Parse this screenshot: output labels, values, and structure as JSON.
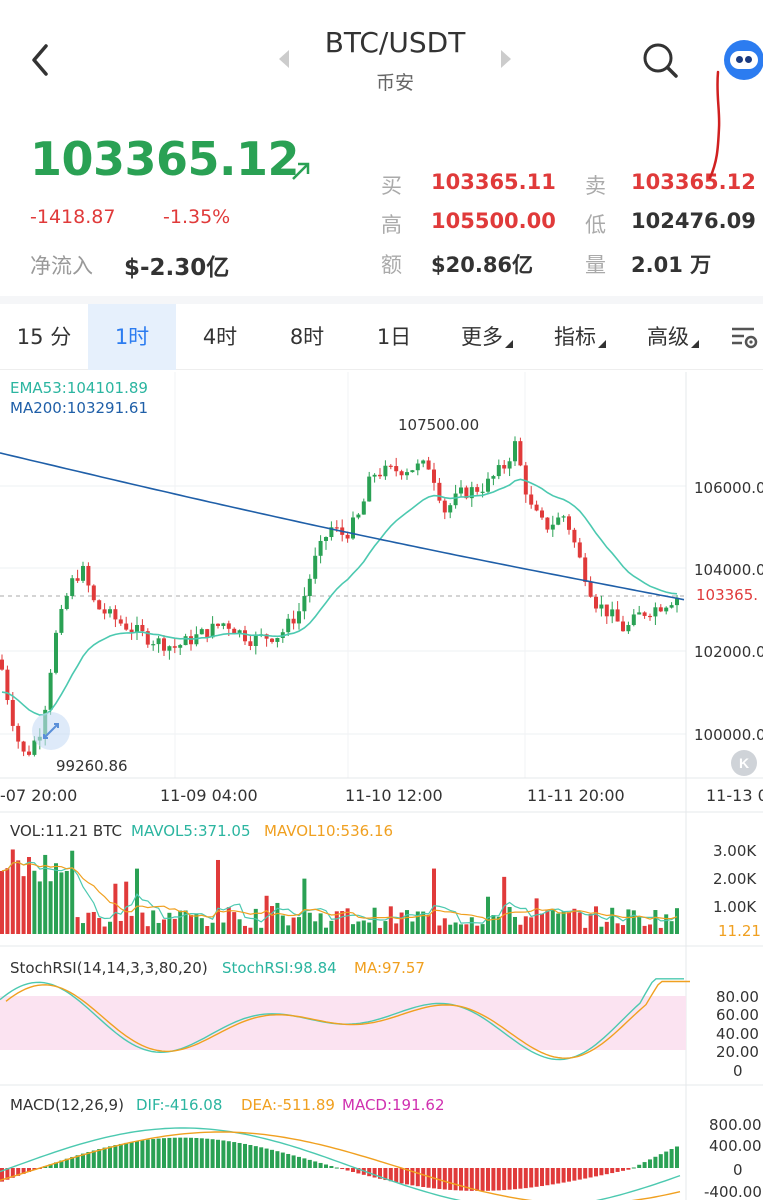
{
  "header": {
    "pair": "BTC/USDT",
    "exchange": "币安"
  },
  "price": {
    "last": "103365.12",
    "change": "-1418.87",
    "change_pct": "-1.35%",
    "netflow_label": "净流入",
    "netflow_value": "$-2.30亿"
  },
  "stats": {
    "buy_label": "买",
    "buy_value": "103365.11",
    "sell_label": "卖",
    "sell_value": "103365.12",
    "high_label": "高",
    "high_value": "105500.00",
    "low_label": "低",
    "low_value": "102476.09",
    "amount_label": "额",
    "amount_value": "$20.86亿",
    "volume_label": "量",
    "volume_value": "2.01 万"
  },
  "tabs": [
    {
      "label": "15 分"
    },
    {
      "label": "1时",
      "active": true
    },
    {
      "label": "4时"
    },
    {
      "label": "8时"
    },
    {
      "label": "1日"
    },
    {
      "label": "更多"
    },
    {
      "label": "指标"
    },
    {
      "label": "高级"
    }
  ],
  "main_chart": {
    "ema_label": "EMA53:104101.89",
    "ma_label": "MA200:103291.61",
    "high_marker": "107500.00",
    "low_marker": "99260.86",
    "current_tag": "103365.",
    "y_ticks": [
      "106000.0",
      "104000.0",
      "102000.0",
      "100000.0"
    ],
    "dates": [
      "-07 20:00",
      "11-09 04:00",
      "11-10 12:00",
      "11-11 20:00",
      "11-13 0"
    ]
  },
  "volume": {
    "vol_label": "VOL:11.21 BTC",
    "mavol5_label": "MAVOL5:371.05",
    "mavol10_label": "MAVOL10:536.16",
    "y_ticks": [
      "3.00K",
      "2.00K",
      "1.00K"
    ],
    "current": "11.21"
  },
  "stochrsi": {
    "params_label": "StochRSI(14,14,3,3,80,20)",
    "value_label": "StochRSI:98.84",
    "ma_label": "MA:97.57",
    "y_ticks": [
      "80.00",
      "60.00",
      "40.00",
      "20.00",
      "0"
    ]
  },
  "macd": {
    "params_label": "MACD(12,26,9)",
    "dif_label": "DIF:-416.08",
    "dea_label": "DEA:-511.89",
    "macd_label": "MACD:191.62",
    "y_ticks": [
      "800.00",
      "400.00",
      "0",
      "-400.00"
    ]
  },
  "colors": {
    "up": "#2aa154",
    "down": "#e03a3a",
    "ema": "#4cc9b0",
    "ma200": "#1f5fa8",
    "mavol10": "#f0a020",
    "accent": "#2c7cf0"
  },
  "icons": [
    "back-icon",
    "prev-pair-icon",
    "next-pair-icon",
    "search-icon",
    "assistant-bot-icon",
    "trend-up-arrow-icon",
    "chart-settings-icon",
    "expand-icon",
    "k-icon"
  ]
}
